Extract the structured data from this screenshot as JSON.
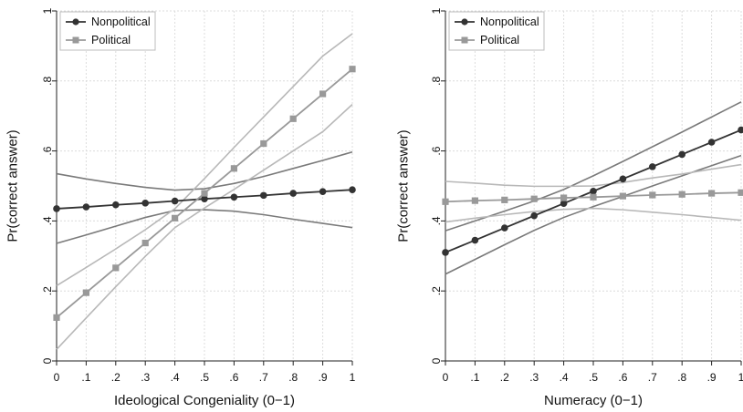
{
  "chart_data": [
    {
      "type": "line",
      "xlabel": "Ideological Congeniality (0−1)",
      "ylabel": "Pr(correct answer)",
      "xlim": [
        0,
        1
      ],
      "ylim": [
        0,
        1
      ],
      "grid": true,
      "legend_position": "top-left",
      "x_ticks": [
        0,
        0.1,
        0.2,
        0.3,
        0.4,
        0.5,
        0.6,
        0.7,
        0.8,
        0.9,
        1
      ],
      "x_tick_labels": [
        "0",
        ".1",
        ".2",
        ".3",
        ".4",
        ".5",
        ".6",
        ".7",
        ".8",
        ".9",
        "1"
      ],
      "y_ticks": [
        0,
        0.2,
        0.4,
        0.6,
        0.8,
        1
      ],
      "y_tick_labels": [
        "0",
        ".2",
        ".4",
        ".6",
        ".8",
        "1"
      ],
      "x": [
        0,
        0.1,
        0.2,
        0.3,
        0.4,
        0.5,
        0.6,
        0.7,
        0.8,
        0.9,
        1
      ],
      "series": [
        {
          "name": "Nonpolitical",
          "marker": "circle",
          "color": "#333333",
          "ci_color": "#7a7a7a",
          "values": [
            0.435,
            0.44,
            0.446,
            0.451,
            0.457,
            0.463,
            0.468,
            0.473,
            0.479,
            0.484,
            0.489
          ],
          "ci_lower": [
            0.336,
            0.36,
            0.385,
            0.41,
            0.43,
            0.432,
            0.428,
            0.418,
            0.405,
            0.393,
            0.381
          ],
          "ci_upper": [
            0.535,
            0.52,
            0.507,
            0.496,
            0.488,
            0.492,
            0.507,
            0.527,
            0.55,
            0.573,
            0.597
          ]
        },
        {
          "name": "Political",
          "marker": "square",
          "color": "#999999",
          "ci_color": "#b8b8b8",
          "values": [
            0.124,
            0.195,
            0.266,
            0.337,
            0.408,
            0.479,
            0.55,
            0.621,
            0.692,
            0.763,
            0.834
          ],
          "ci_lower": [
            0.033,
            0.123,
            0.212,
            0.299,
            0.381,
            0.437,
            0.49,
            0.545,
            0.6,
            0.655,
            0.733
          ],
          "ci_upper": [
            0.215,
            0.267,
            0.32,
            0.375,
            0.435,
            0.521,
            0.61,
            0.697,
            0.784,
            0.871,
            0.935
          ]
        }
      ]
    },
    {
      "type": "line",
      "xlabel": "Numeracy (0−1)",
      "ylabel": "Pr(correct answer)",
      "xlim": [
        0,
        1
      ],
      "ylim": [
        0,
        1
      ],
      "grid": true,
      "legend_position": "top-left",
      "x_ticks": [
        0,
        0.1,
        0.2,
        0.3,
        0.4,
        0.5,
        0.6,
        0.7,
        0.8,
        0.9,
        1
      ],
      "x_tick_labels": [
        "0",
        ".1",
        ".2",
        ".3",
        ".4",
        ".5",
        ".6",
        ".7",
        ".8",
        ".9",
        "1"
      ],
      "y_ticks": [
        0,
        0.2,
        0.4,
        0.6,
        0.8,
        1
      ],
      "y_tick_labels": [
        "0",
        ".2",
        ".4",
        ".6",
        ".8",
        "1"
      ],
      "x": [
        0,
        0.1,
        0.2,
        0.3,
        0.4,
        0.5,
        0.6,
        0.7,
        0.8,
        0.9,
        1
      ],
      "series": [
        {
          "name": "Nonpolitical",
          "marker": "circle",
          "color": "#333333",
          "ci_color": "#7a7a7a",
          "values": [
            0.31,
            0.345,
            0.38,
            0.415,
            0.45,
            0.485,
            0.52,
            0.555,
            0.59,
            0.625,
            0.66
          ],
          "ci_lower": [
            0.248,
            0.29,
            0.332,
            0.373,
            0.41,
            0.441,
            0.47,
            0.5,
            0.529,
            0.558,
            0.587
          ],
          "ci_upper": [
            0.372,
            0.4,
            0.428,
            0.457,
            0.49,
            0.529,
            0.57,
            0.612,
            0.654,
            0.697,
            0.74
          ]
        },
        {
          "name": "Political",
          "marker": "square",
          "color": "#999999",
          "ci_color": "#b8b8b8",
          "values": [
            0.455,
            0.458,
            0.46,
            0.463,
            0.466,
            0.468,
            0.471,
            0.474,
            0.476,
            0.479,
            0.481
          ],
          "ci_lower": [
            0.397,
            0.408,
            0.418,
            0.427,
            0.433,
            0.436,
            0.432,
            0.425,
            0.418,
            0.41,
            0.402
          ],
          "ci_upper": [
            0.513,
            0.508,
            0.502,
            0.499,
            0.499,
            0.5,
            0.51,
            0.523,
            0.534,
            0.548,
            0.561
          ]
        }
      ]
    }
  ]
}
